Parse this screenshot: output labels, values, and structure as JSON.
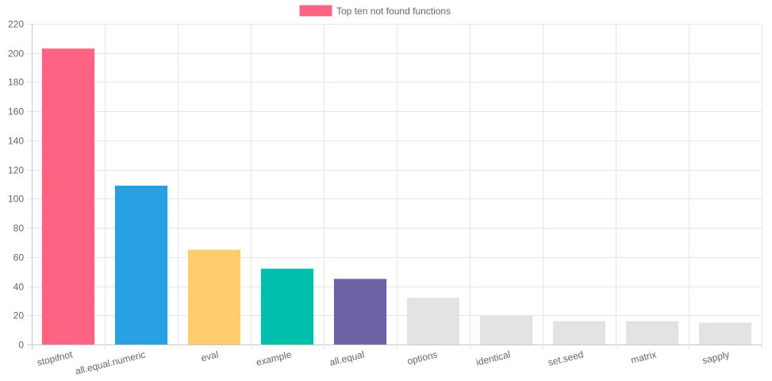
{
  "chart_data": {
    "type": "bar",
    "legend": {
      "label": "Top ten not found functions",
      "color": "#ff6384",
      "position": "top"
    },
    "categories": [
      "stopifnot",
      "all.equal.numeric",
      "eval",
      "example",
      "all.equal",
      "options",
      "identical",
      "set.seed",
      "matrix",
      "sapply"
    ],
    "series": [
      {
        "name": "Top ten not found functions",
        "values": [
          203,
          109,
          65,
          52,
          45,
          32,
          20,
          16,
          16,
          15
        ]
      }
    ],
    "colors": [
      "#ff6384",
      "#27a1e1",
      "#ffcd6c",
      "#00bfad",
      "#6e62a5",
      "#e3e3e3",
      "#e3e3e3",
      "#e3e3e3",
      "#e3e3e3",
      "#e3e3e3"
    ],
    "ylim": [
      0,
      220
    ],
    "yticks": [
      0,
      20,
      40,
      60,
      80,
      100,
      120,
      140,
      160,
      180,
      200,
      220
    ],
    "grid": true
  }
}
